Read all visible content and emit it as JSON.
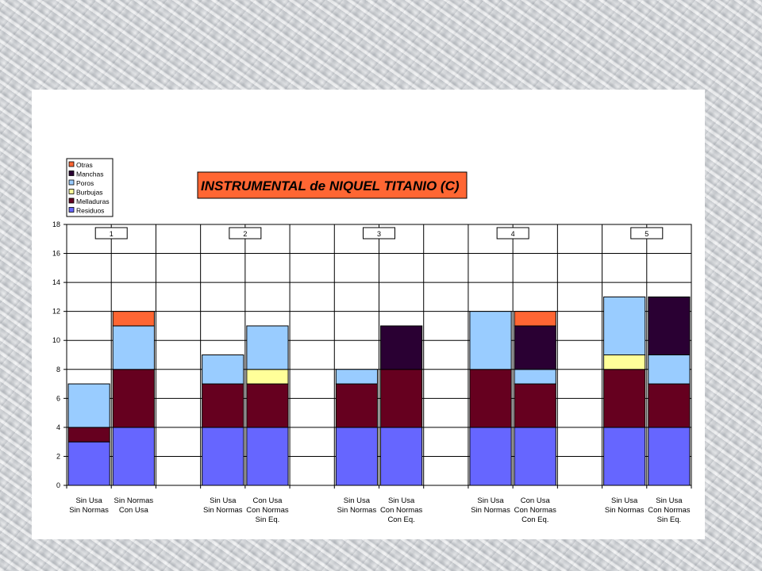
{
  "chart_data": {
    "type": "bar",
    "stacked": true,
    "title": "INSTRUMENTAL de NIQUEL TITANIO (C)",
    "ylim": [
      0,
      18
    ],
    "yticks": [
      0,
      2,
      4,
      6,
      8,
      10,
      12,
      14,
      16,
      18
    ],
    "grid": true,
    "legend_position": "top-left",
    "group_labels": [
      "1",
      "2",
      "3",
      "4",
      "5"
    ],
    "categories": [
      [
        "Sin Usa",
        "Sin Normas"
      ],
      [
        "Sin Normas",
        "Con Usa"
      ],
      [
        "Sin Usa",
        "Sin Normas"
      ],
      [
        "Con Usa",
        "Con Normas",
        "Sin Eq."
      ],
      [
        "Sin Usa",
        "Sin Normas"
      ],
      [
        "Sin Usa",
        "Con Normas",
        "Con Eq."
      ],
      [
        "Sin Usa",
        "Sin Normas"
      ],
      [
        "Con Usa",
        "Con Normas",
        "Con Eq."
      ],
      [
        "Sin Usa",
        "Sin Normas"
      ],
      [
        "Sin Usa",
        "Con Normas",
        "Sin Eq."
      ]
    ],
    "series": [
      {
        "name": "Residuos",
        "color": "#6666ff",
        "values": [
          3,
          4,
          4,
          4,
          4,
          4,
          4,
          4,
          4,
          4
        ]
      },
      {
        "name": "Melladuras",
        "color": "#66001f",
        "values": [
          1,
          4,
          3,
          3,
          3,
          4,
          4,
          3,
          4,
          3
        ]
      },
      {
        "name": "Burbujas",
        "color": "#ffff99",
        "values": [
          0,
          0,
          0,
          1,
          0,
          0,
          0,
          0,
          1,
          0
        ]
      },
      {
        "name": "Poros",
        "color": "#99ccff",
        "values": [
          3,
          3,
          2,
          3,
          1,
          0,
          4,
          1,
          4,
          2
        ]
      },
      {
        "name": "Manchas",
        "color": "#2a0033",
        "values": [
          0,
          0,
          0,
          0,
          0,
          3,
          0,
          3,
          0,
          4
        ]
      },
      {
        "name": "Otras",
        "color": "#ff6633",
        "values": [
          0,
          1,
          0,
          0,
          0,
          0,
          0,
          1,
          0,
          0
        ]
      }
    ]
  }
}
